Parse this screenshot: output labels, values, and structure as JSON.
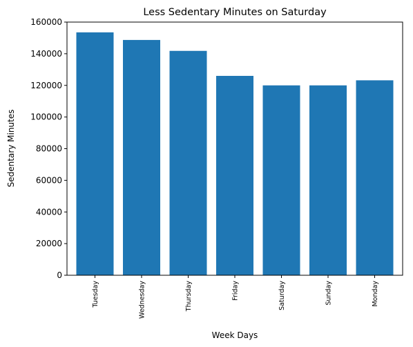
{
  "chart_data": {
    "type": "bar",
    "title": "Less Sedentary Minutes on Saturday",
    "xlabel": "Week Days",
    "ylabel": "Sedentary Minutes",
    "categories": [
      "Tuesday",
      "Wednesday",
      "Thursday",
      "Friday",
      "Saturday",
      "Sunday",
      "Monday"
    ],
    "values": [
      153500,
      148700,
      141800,
      126000,
      120000,
      120000,
      123200
    ],
    "ylim": [
      0,
      160000
    ],
    "yticks": [
      0,
      20000,
      40000,
      60000,
      80000,
      100000,
      120000,
      140000,
      160000
    ],
    "ytick_labels": [
      "0",
      "20000",
      "40000",
      "60000",
      "80000",
      "100000",
      "120000",
      "140000",
      "160000"
    ],
    "grid": false,
    "colors": {
      "bar": "#1f77b4",
      "axis": "#000000"
    }
  }
}
